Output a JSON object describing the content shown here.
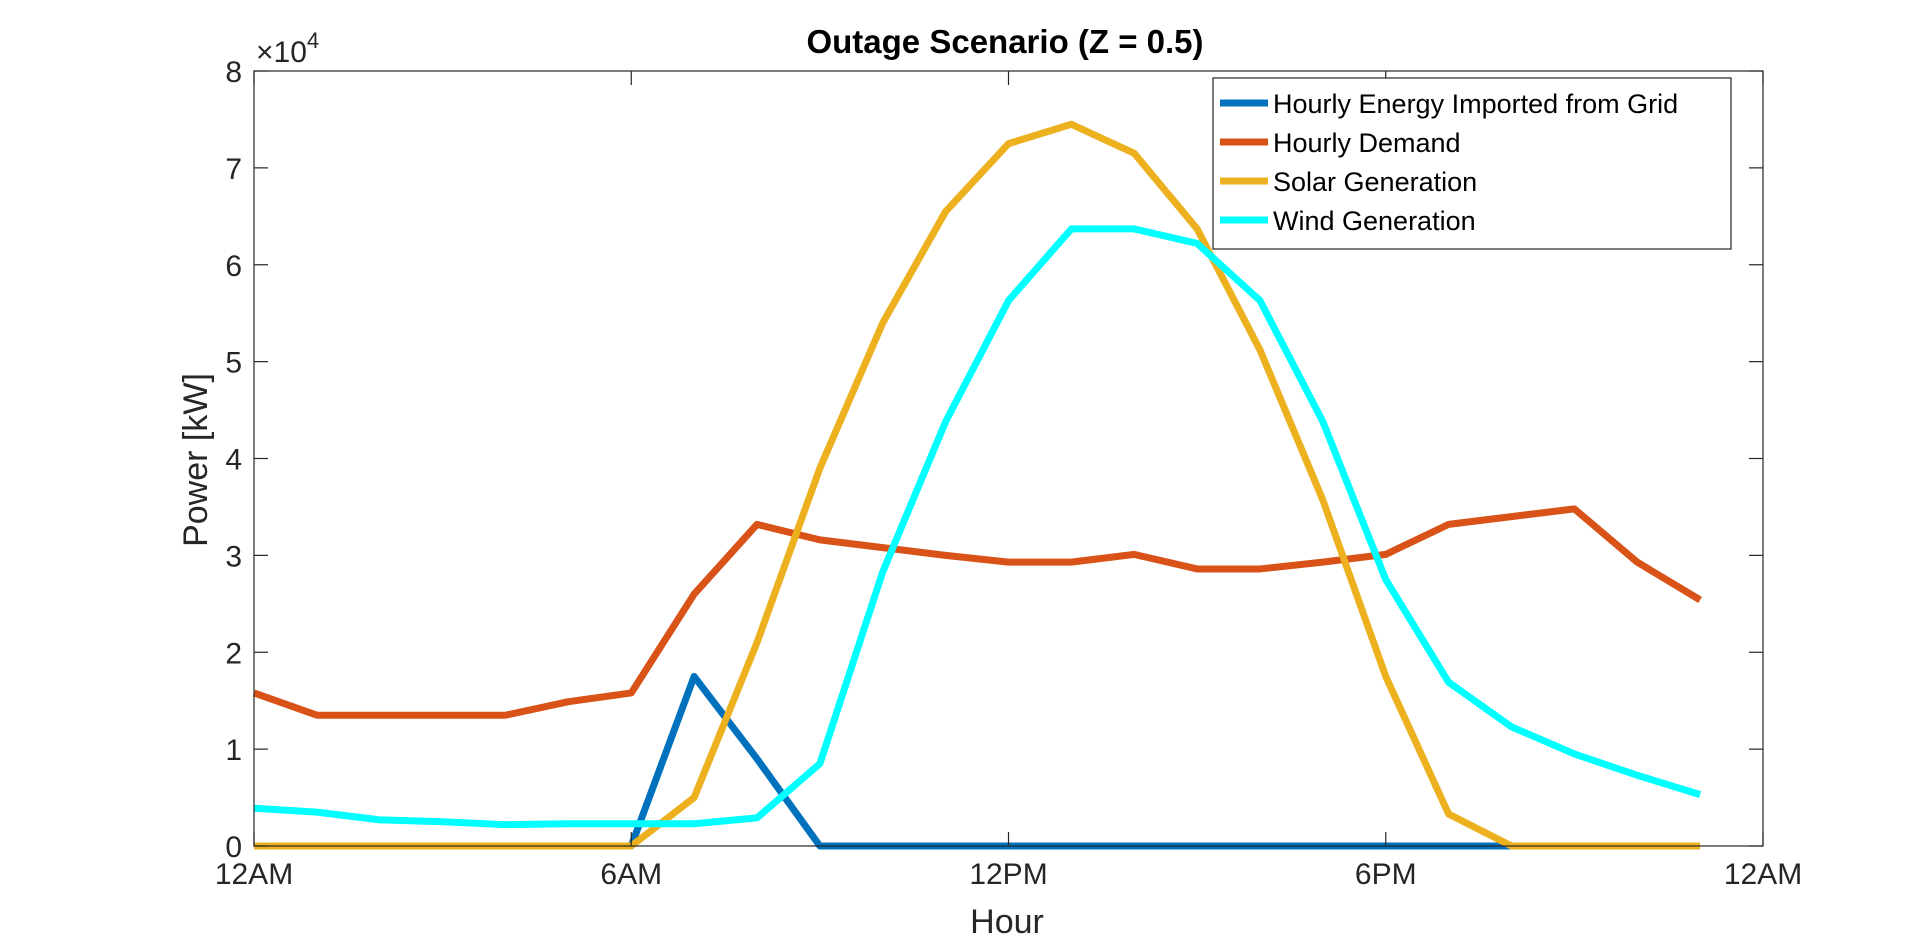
{
  "chart_data": {
    "type": "line",
    "title": "Outage Scenario (Z = 0.5)",
    "xlabel": "Hour",
    "ylabel": "Power [kW]",
    "y_exponent_label": {
      "prefix": "×10",
      "exponent": "4"
    },
    "xlim": [
      0,
      24
    ],
    "ylim": [
      0,
      80000
    ],
    "y_scale_factor": 10000,
    "x_ticks": [
      0,
      6,
      12,
      18,
      24
    ],
    "x_tick_labels": [
      "12AM",
      "6AM",
      "12PM",
      "6PM",
      "12AM"
    ],
    "y_ticks": [
      0,
      10000,
      20000,
      30000,
      40000,
      50000,
      60000,
      70000,
      80000
    ],
    "y_tick_labels": [
      "0",
      "1",
      "2",
      "3",
      "4",
      "5",
      "6",
      "7",
      "8"
    ],
    "grid": false,
    "legend_position": "top-right",
    "x": [
      0,
      1,
      2,
      3,
      4,
      5,
      6,
      7,
      8,
      9,
      10,
      11,
      12,
      13,
      14,
      15,
      16,
      17,
      18,
      19,
      20,
      21,
      22,
      23
    ],
    "series": [
      {
        "name": "Hourly Energy Imported from Grid",
        "color": "#0072BD",
        "values": [
          0,
          0,
          0,
          0,
          0,
          0,
          0,
          17500,
          9000,
          0,
          0,
          0,
          0,
          0,
          0,
          0,
          0,
          0,
          0,
          0,
          0,
          null,
          null,
          null
        ]
      },
      {
        "name": "Hourly Demand",
        "color": "#D95319",
        "values": [
          15800,
          13500,
          13500,
          13500,
          13500,
          14900,
          15800,
          26000,
          33200,
          31600,
          30800,
          30000,
          29300,
          29300,
          30100,
          28600,
          28600,
          29300,
          30100,
          33200,
          34000,
          34800,
          29300,
          25400
        ]
      },
      {
        "name": "Solar Generation",
        "color": "#EDB120",
        "values": [
          0,
          0,
          0,
          0,
          0,
          0,
          0,
          5000,
          21000,
          39000,
          54000,
          65500,
          72500,
          74500,
          71500,
          63700,
          51200,
          35700,
          17500,
          3300,
          0,
          0,
          0,
          0
        ]
      },
      {
        "name": "Wind Generation",
        "color": "#00FFFF",
        "values": [
          3900,
          3500,
          2700,
          2500,
          2200,
          2300,
          2300,
          2300,
          2900,
          8500,
          28300,
          43800,
          56300,
          63700,
          63700,
          62200,
          56300,
          43800,
          27500,
          16900,
          12300,
          9500,
          7300,
          5300
        ]
      }
    ]
  }
}
